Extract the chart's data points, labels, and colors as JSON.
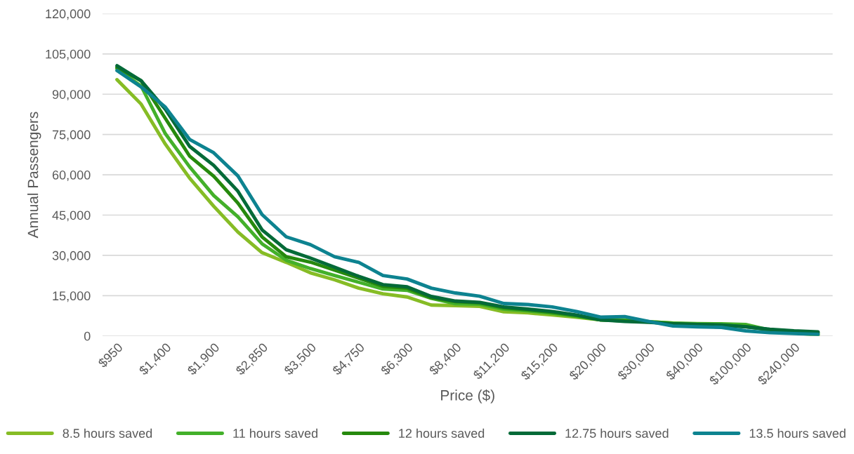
{
  "chart_data": {
    "type": "line",
    "xlabel": "Price ($)",
    "ylabel": "Annual Passengers",
    "categories": [
      "$950",
      null,
      "$1,400",
      null,
      "$1,900",
      null,
      "$2,850",
      null,
      "$3,500",
      null,
      "$4,750",
      null,
      "$6,300",
      null,
      "$8,400",
      null,
      "$11,200",
      null,
      "$15,200",
      null,
      "$20,000",
      null,
      "$30,000",
      null,
      "$40,000",
      null,
      "$100,000",
      null,
      "$240,000",
      null
    ],
    "ylim": [
      0,
      120000
    ],
    "yticks": [
      {
        "value": 0,
        "label": "0"
      },
      {
        "value": 15000,
        "label": "15,000"
      },
      {
        "value": 30000,
        "label": "30,000"
      },
      {
        "value": 45000,
        "label": "45,000"
      },
      {
        "value": 60000,
        "label": "60,000"
      },
      {
        "value": 75000,
        "label": "75,000"
      },
      {
        "value": 90000,
        "label": "90,000"
      },
      {
        "value": 105000,
        "label": "105,000"
      },
      {
        "value": 120000,
        "label": "120,000"
      }
    ],
    "grid": "y",
    "legend": "bottom",
    "marker": "none",
    "line_style": "solid",
    "series": [
      {
        "name": "8.5 hours saved",
        "color": "#86bc25",
        "values": [
          95400,
          86300,
          71400,
          58800,
          48300,
          38700,
          31000,
          27400,
          23500,
          20900,
          17800,
          15700,
          14500,
          11500,
          11300,
          11000,
          9000,
          8600,
          7800,
          7000,
          6000,
          5800,
          5300,
          4800,
          4300,
          4200,
          4000,
          2000,
          1200,
          300
        ]
      },
      {
        "name": "11 hours saved",
        "color": "#43b02a",
        "values": [
          99500,
          93000,
          75300,
          63000,
          52300,
          44400,
          34300,
          28200,
          25100,
          22500,
          20000,
          17500,
          17000,
          14000,
          12000,
          11800,
          10000,
          9300,
          8500,
          7300,
          6000,
          6000,
          5300,
          4800,
          4600,
          4500,
          4300,
          2200,
          1500,
          800
        ]
      },
      {
        "name": "12 hours saved",
        "color": "#26890d",
        "values": [
          100000,
          95000,
          81000,
          67000,
          59500,
          49500,
          36900,
          29500,
          27500,
          24500,
          21500,
          18500,
          17800,
          14200,
          12800,
          12300,
          10500,
          9700,
          8800,
          7600,
          6000,
          5600,
          5200,
          4600,
          4300,
          4000,
          3500,
          2300,
          1700,
          1200
        ]
      },
      {
        "name": "12.75 hours saved",
        "color": "#046a38",
        "values": [
          100600,
          95000,
          84400,
          70600,
          63500,
          53900,
          39500,
          32100,
          29000,
          25600,
          22200,
          19100,
          18300,
          14700,
          13000,
          12500,
          10800,
          10000,
          9100,
          7800,
          6000,
          5400,
          5100,
          4500,
          4300,
          4100,
          3400,
          2500,
          1900,
          1500
        ]
      },
      {
        "name": "13.5 hours saved",
        "color": "#0d8390",
        "values": [
          98800,
          92700,
          85200,
          73200,
          68200,
          59600,
          45200,
          36900,
          34000,
          29500,
          27400,
          22500,
          21200,
          17800,
          16000,
          14800,
          12100,
          11700,
          10800,
          9100,
          7000,
          7200,
          5400,
          3700,
          3400,
          3200,
          1900,
          1200,
          900,
          600
        ]
      }
    ]
  }
}
